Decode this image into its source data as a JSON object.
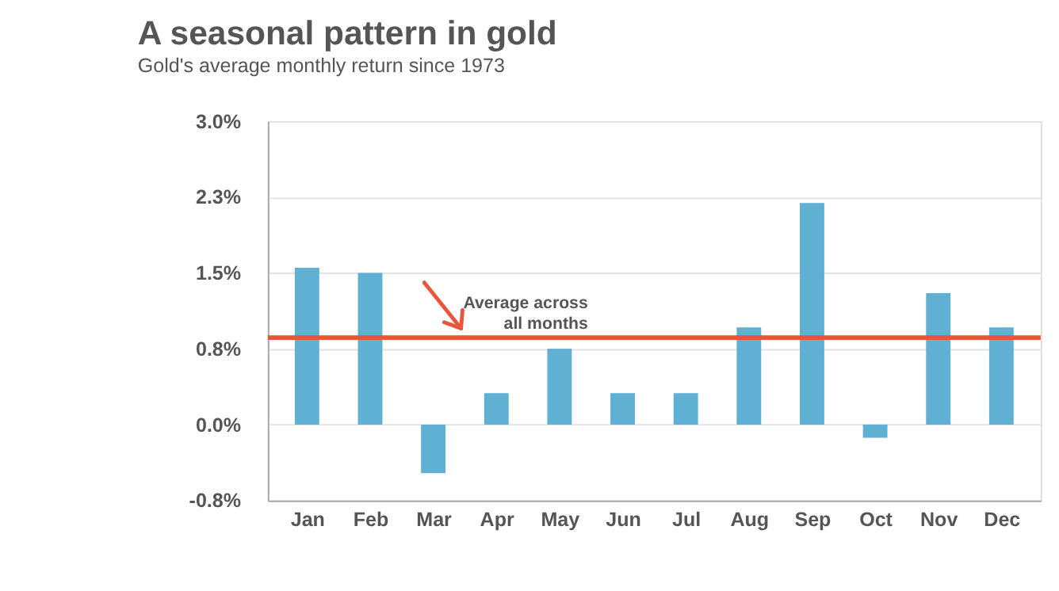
{
  "chart_data": {
    "type": "bar",
    "title": "A seasonal pattern in gold",
    "subtitle": "Gold's average monthly return since 1973",
    "categories": [
      "Jan",
      "Feb",
      "Mar",
      "Apr",
      "May",
      "Jun",
      "Jul",
      "Aug",
      "Sep",
      "Oct",
      "Nov",
      "Dec"
    ],
    "values": [
      1.55,
      1.5,
      -0.48,
      0.31,
      0.75,
      0.31,
      0.31,
      0.96,
      2.19,
      -0.13,
      1.3,
      0.96
    ],
    "color": "#5fb0d2",
    "ylim": [
      -0.75,
      3.0
    ],
    "yticks": [
      {
        "value": -0.75,
        "label": "-0.8%"
      },
      {
        "value": 0,
        "label": "0.0%"
      },
      {
        "value": 0.75,
        "label": "0.8%"
      },
      {
        "value": 1.5,
        "label": "1.5%"
      },
      {
        "value": 2.25,
        "label": "2.3%"
      },
      {
        "value": 3.0,
        "label": "3.0%"
      }
    ],
    "grid": "y",
    "ref_lines": [
      {
        "axis": "y",
        "value": 0.86,
        "label": "Average across\nall months",
        "color": "#e8543c"
      }
    ]
  }
}
